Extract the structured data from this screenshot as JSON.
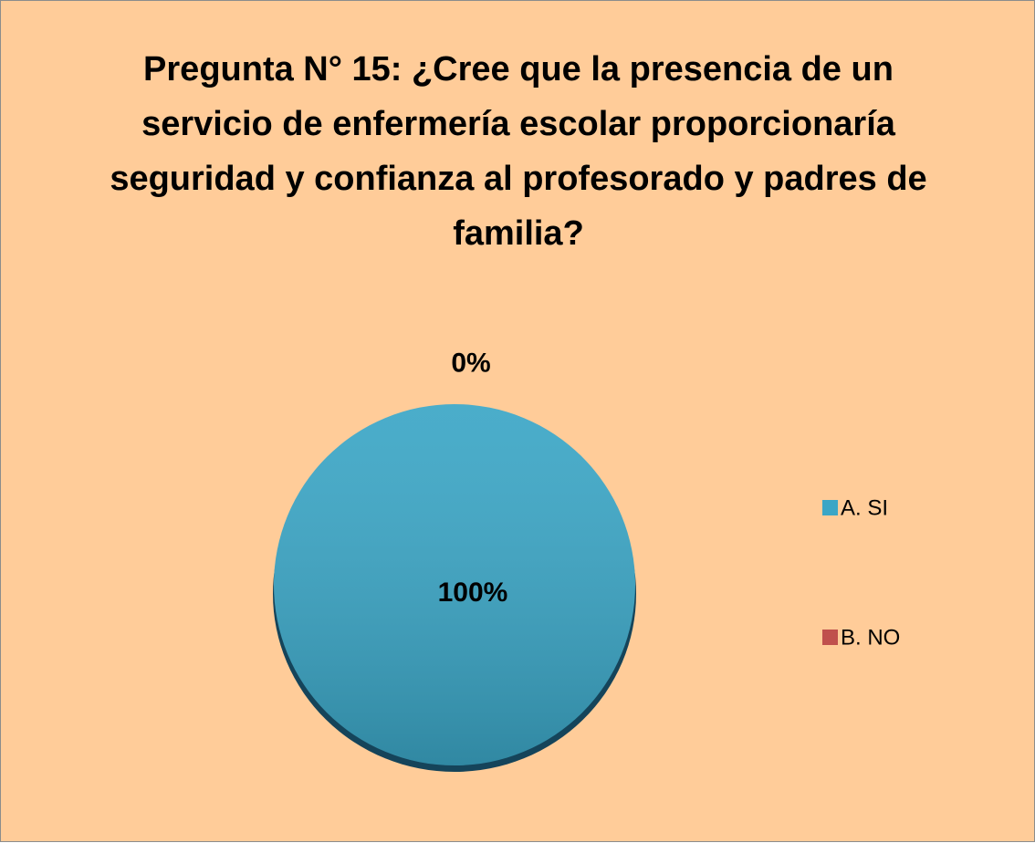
{
  "chart_data": {
    "type": "pie",
    "title": "Pregunta N° 15: ¿Cree que la presencia de un servicio de enfermería escolar proporcionaría seguridad y confianza al profesorado y padres de familia?",
    "categories": [
      "A. SI",
      "B. NO"
    ],
    "values": [
      100,
      0
    ],
    "value_labels": [
      "100%",
      "0%"
    ],
    "colors": [
      "#3ba6c6",
      "#c0504d"
    ],
    "legend": "right"
  }
}
